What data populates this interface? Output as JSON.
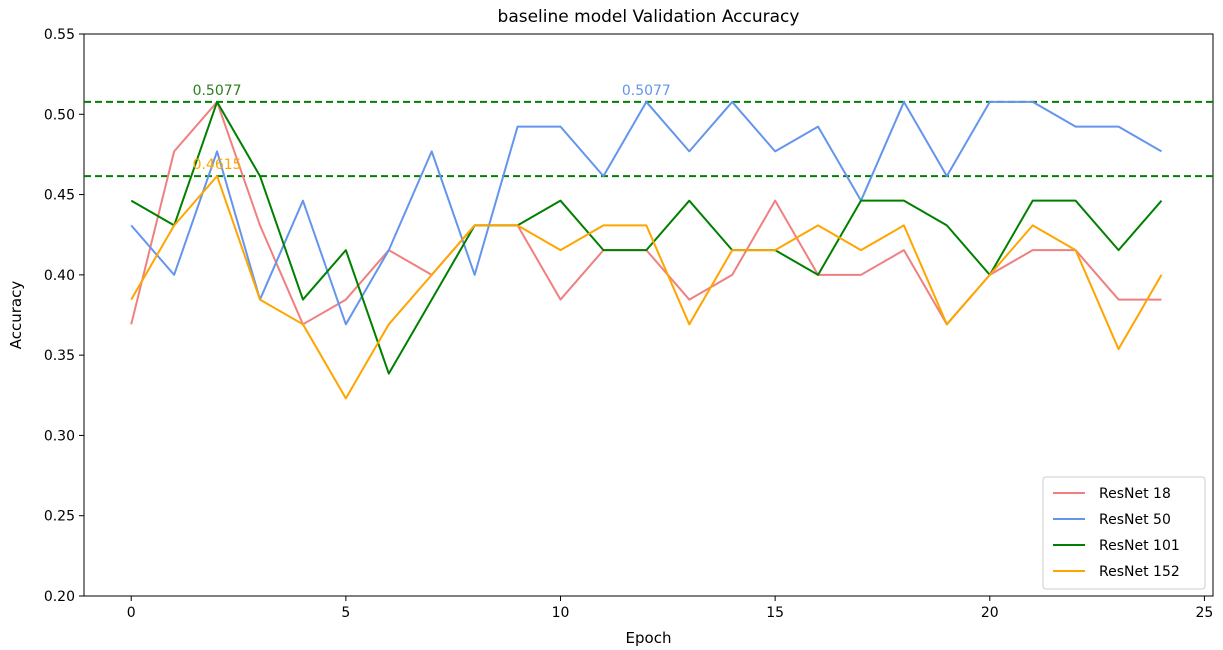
{
  "chart_data": {
    "type": "line",
    "title": "baseline model Validation Accuracy",
    "xlabel": "Epoch",
    "ylabel": "Accuracy",
    "xlim": [
      -1.1,
      25.2
    ],
    "ylim": [
      0.2,
      0.55
    ],
    "xticks": [
      0,
      5,
      10,
      15,
      20,
      25
    ],
    "xtick_labels": [
      "0",
      "5",
      "10",
      "15",
      "20",
      "25"
    ],
    "yticks": [
      0.2,
      0.25,
      0.3,
      0.35,
      0.4,
      0.45,
      0.5,
      0.55
    ],
    "ytick_labels": [
      "0.20",
      "0.25",
      "0.30",
      "0.35",
      "0.40",
      "0.45",
      "0.50",
      "0.55"
    ],
    "grid": false,
    "legend_position": "lower-right",
    "x": [
      0,
      1,
      2,
      3,
      4,
      5,
      6,
      7,
      8,
      9,
      10,
      11,
      12,
      13,
      14,
      15,
      16,
      17,
      18,
      19,
      20,
      21,
      22,
      23,
      24
    ],
    "series": [
      {
        "name": "ResNet 18",
        "color": "#f08080",
        "values": [
          0.3692,
          0.4769,
          0.5077,
          0.4308,
          0.3692,
          0.3846,
          0.4154,
          0.4,
          0.4308,
          0.4308,
          0.3846,
          0.4154,
          0.4154,
          0.3846,
          0.4,
          0.4462,
          0.4,
          0.4,
          0.4154,
          0.3692,
          0.4,
          0.4154,
          0.4154,
          0.3846,
          0.3846
        ]
      },
      {
        "name": "ResNet 50",
        "color": "#6495ed",
        "values": [
          0.4308,
          0.4,
          0.4769,
          0.3846,
          0.4462,
          0.3692,
          0.4154,
          0.4769,
          0.4,
          0.4923,
          0.4923,
          0.4615,
          0.5077,
          0.4769,
          0.5077,
          0.4769,
          0.4923,
          0.4462,
          0.5077,
          0.4615,
          0.5077,
          0.5077,
          0.4923,
          0.4923,
          0.4769
        ]
      },
      {
        "name": "ResNet 101",
        "color": "#008000",
        "values": [
          0.4462,
          0.4308,
          0.5077,
          0.4615,
          0.3846,
          0.4154,
          0.3385,
          0.3846,
          0.4308,
          0.4308,
          0.4462,
          0.4154,
          0.4154,
          0.4462,
          0.4154,
          0.4154,
          0.4,
          0.4462,
          0.4462,
          0.4308,
          0.4,
          0.4462,
          0.4462,
          0.4154,
          0.4462
        ]
      },
      {
        "name": "ResNet 152",
        "color": "#ffa500",
        "values": [
          0.3846,
          0.4308,
          0.4615,
          0.3846,
          0.3692,
          0.3231,
          0.3692,
          0.4,
          0.4308,
          0.4308,
          0.4154,
          0.4308,
          0.4308,
          0.3692,
          0.4154,
          0.4154,
          0.4308,
          0.4154,
          0.4308,
          0.3692,
          0.4,
          0.4308,
          0.4154,
          0.3538,
          0.4
        ]
      }
    ],
    "reference_lines": [
      {
        "y": 0.5077,
        "color": "#008000",
        "style": "dashed"
      },
      {
        "y": 0.4615,
        "color": "#008000",
        "style": "dashed"
      }
    ],
    "annotations": [
      {
        "text": "0.5077",
        "x": 2,
        "y": 0.5077,
        "color": "#2e7d1f"
      },
      {
        "text": "0.5077",
        "x": 12,
        "y": 0.5077,
        "color": "#6495ed"
      },
      {
        "text": "0.4615",
        "x": 2,
        "y": 0.4615,
        "color": "#ffa500"
      }
    ]
  }
}
